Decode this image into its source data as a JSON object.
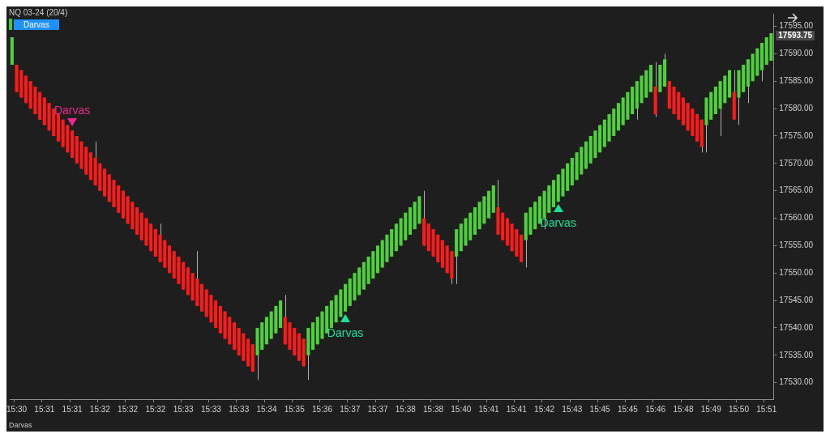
{
  "chart_data": {
    "type": "candlestick",
    "title": "NQ 03-24 (20/4)",
    "categories": [
      null,
      "15:30",
      null,
      null,
      null,
      null,
      null,
      "15:31",
      null,
      null,
      null,
      null,
      null,
      "15:31",
      null,
      null,
      null,
      null,
      null,
      "15:32",
      null,
      null,
      null,
      null,
      null,
      "15:32",
      null,
      null,
      null,
      null,
      null,
      "15:32",
      null,
      null,
      null,
      null,
      null,
      "15:33",
      null,
      null,
      null,
      null,
      null,
      "15:33",
      null,
      null,
      null,
      null,
      null,
      "15:33",
      null,
      null,
      null,
      null,
      null,
      "15:34",
      null,
      null,
      null,
      null,
      null,
      "15:35",
      null,
      null,
      null,
      null,
      null,
      "15:36",
      null,
      null,
      null,
      null,
      null,
      "15:37",
      null,
      null,
      null,
      null,
      null,
      "15:37",
      null,
      null,
      null,
      null,
      null,
      "15:38",
      null,
      null,
      null,
      null,
      null,
      "15:38",
      null,
      null,
      null,
      null,
      null,
      "15:40",
      null,
      null,
      null,
      null,
      null,
      "15:41",
      null,
      null,
      null,
      null,
      null,
      "15:41",
      null,
      null,
      null,
      null,
      null,
      "15:42",
      null,
      null,
      null,
      null,
      null,
      "15:43",
      null,
      null,
      null,
      null,
      null,
      "15:45",
      null,
      null,
      null,
      null,
      null,
      "15:45",
      null,
      null,
      null,
      null,
      null,
      "15:46",
      null,
      null,
      null,
      null,
      null,
      "15:48",
      null,
      null,
      null,
      null,
      null,
      "15:49",
      null,
      null,
      null,
      null,
      null,
      "15:50",
      null,
      null,
      null,
      null,
      null,
      "15:51",
      null
    ],
    "ohlc": [
      [
        17588,
        17593,
        17588,
        17593
      ],
      [
        17588,
        17588,
        17583,
        17583
      ],
      [
        17587,
        17587,
        17582,
        17582
      ],
      [
        17586,
        17586,
        17581,
        17581
      ],
      [
        17585,
        17585,
        17580,
        17580
      ],
      [
        17584,
        17584,
        17579,
        17579
      ],
      [
        17583,
        17583,
        17578,
        17578
      ],
      [
        17582,
        17582,
        17577,
        17577
      ],
      [
        17581,
        17581,
        17576,
        17576
      ],
      [
        17580,
        17580,
        17575,
        17575
      ],
      [
        17579,
        17579,
        17574,
        17574
      ],
      [
        17578,
        17578,
        17573,
        17573
      ],
      [
        17577,
        17577,
        17572,
        17572
      ],
      [
        17576,
        17576,
        17571,
        17571
      ],
      [
        17575,
        17575,
        17570,
        17570
      ],
      [
        17574,
        17574,
        17569,
        17569
      ],
      [
        17573,
        17573,
        17568,
        17568
      ],
      [
        17572,
        17572,
        17567,
        17567
      ],
      [
        17571,
        17574,
        17566,
        17566
      ],
      [
        17570,
        17570,
        17565,
        17565
      ],
      [
        17569,
        17569,
        17564,
        17564
      ],
      [
        17568,
        17568,
        17563,
        17563
      ],
      [
        17567,
        17567,
        17562,
        17562
      ],
      [
        17566,
        17566,
        17561,
        17561
      ],
      [
        17565,
        17565,
        17560,
        17560
      ],
      [
        17564,
        17564,
        17559,
        17559
      ],
      [
        17563,
        17563,
        17558,
        17558
      ],
      [
        17562,
        17562,
        17557,
        17557
      ],
      [
        17561,
        17561,
        17556,
        17556
      ],
      [
        17560,
        17560,
        17555,
        17555
      ],
      [
        17559,
        17559,
        17554,
        17554
      ],
      [
        17558,
        17558,
        17553,
        17553
      ],
      [
        17557,
        17559,
        17552,
        17552
      ],
      [
        17556,
        17556,
        17551,
        17551
      ],
      [
        17555,
        17555,
        17550,
        17550
      ],
      [
        17554,
        17554,
        17549,
        17549
      ],
      [
        17553,
        17553,
        17548,
        17548
      ],
      [
        17552,
        17552,
        17547,
        17547
      ],
      [
        17551,
        17551,
        17546,
        17546
      ],
      [
        17550,
        17550,
        17545,
        17545
      ],
      [
        17549,
        17554,
        17544,
        17544
      ],
      [
        17548,
        17548,
        17543,
        17543
      ],
      [
        17547,
        17547,
        17542,
        17542
      ],
      [
        17546,
        17546,
        17541,
        17541
      ],
      [
        17545,
        17545,
        17540,
        17540
      ],
      [
        17544,
        17544,
        17539,
        17539
      ],
      [
        17543,
        17543,
        17538,
        17538
      ],
      [
        17542,
        17542,
        17537,
        17537
      ],
      [
        17541,
        17541,
        17536,
        17536
      ],
      [
        17540,
        17540,
        17535,
        17535
      ],
      [
        17539,
        17539,
        17534,
        17534
      ],
      [
        17538,
        17538,
        17533,
        17533
      ],
      [
        17537,
        17537,
        17532,
        17532
      ],
      [
        17535,
        17540,
        17530.5,
        17540
      ],
      [
        17536,
        17541,
        17536,
        17541
      ],
      [
        17537,
        17542,
        17537,
        17542
      ],
      [
        17538,
        17543,
        17538,
        17543
      ],
      [
        17539,
        17544,
        17539,
        17544
      ],
      [
        17540,
        17545,
        17540,
        17545
      ],
      [
        17542,
        17546,
        17537,
        17537
      ],
      [
        17541,
        17541,
        17536,
        17536
      ],
      [
        17540,
        17540,
        17535,
        17535
      ],
      [
        17539,
        17539,
        17534,
        17534
      ],
      [
        17538,
        17538,
        17533,
        17533
      ],
      [
        17535,
        17540,
        17530.5,
        17540
      ],
      [
        17536,
        17541,
        17536,
        17541
      ],
      [
        17537,
        17542,
        17537,
        17542
      ],
      [
        17538,
        17543,
        17538,
        17543
      ],
      [
        17539,
        17544,
        17539,
        17544
      ],
      [
        17540,
        17545,
        17540,
        17545
      ],
      [
        17541,
        17546,
        17541,
        17546
      ],
      [
        17542,
        17547,
        17542,
        17547
      ],
      [
        17543,
        17548,
        17543,
        17548
      ],
      [
        17544,
        17549,
        17544,
        17549
      ],
      [
        17545,
        17550,
        17545,
        17550
      ],
      [
        17546,
        17551,
        17546,
        17551
      ],
      [
        17547,
        17552,
        17547,
        17552
      ],
      [
        17548,
        17553,
        17548,
        17553
      ],
      [
        17549,
        17554,
        17549,
        17554
      ],
      [
        17550,
        17555,
        17550,
        17555
      ],
      [
        17551,
        17556,
        17551,
        17556
      ],
      [
        17552,
        17557,
        17552,
        17557
      ],
      [
        17553,
        17558,
        17553,
        17558
      ],
      [
        17554,
        17559,
        17554,
        17559
      ],
      [
        17555,
        17560,
        17555,
        17560
      ],
      [
        17556,
        17561,
        17556,
        17561
      ],
      [
        17557,
        17562,
        17557,
        17562
      ],
      [
        17558,
        17563,
        17558,
        17563
      ],
      [
        17559,
        17564,
        17559,
        17564
      ],
      [
        17560,
        17565,
        17555,
        17555
      ],
      [
        17559,
        17559,
        17554,
        17554
      ],
      [
        17558,
        17558,
        17553,
        17553
      ],
      [
        17557,
        17557,
        17552,
        17552
      ],
      [
        17556,
        17556,
        17551,
        17551
      ],
      [
        17555,
        17555,
        17550,
        17550
      ],
      [
        17554,
        17554,
        17548,
        17549
      ],
      [
        17553,
        17558,
        17548,
        17558
      ],
      [
        17554,
        17559,
        17554,
        17559
      ],
      [
        17555,
        17560,
        17555,
        17560
      ],
      [
        17556,
        17561,
        17556,
        17561
      ],
      [
        17557,
        17562,
        17557,
        17562
      ],
      [
        17558,
        17563,
        17558,
        17563
      ],
      [
        17559,
        17564,
        17559,
        17564
      ],
      [
        17560,
        17565,
        17560,
        17565
      ],
      [
        17561,
        17566,
        17561,
        17566
      ],
      [
        17562,
        17567,
        17557,
        17557
      ],
      [
        17561,
        17561,
        17556,
        17556
      ],
      [
        17560,
        17560,
        17555,
        17555
      ],
      [
        17559,
        17559,
        17554,
        17554
      ],
      [
        17558,
        17558,
        17553,
        17553
      ],
      [
        17557,
        17557,
        17552,
        17552
      ],
      [
        17556,
        17561,
        17551,
        17561
      ],
      [
        17557,
        17562,
        17557,
        17562
      ],
      [
        17558,
        17563,
        17558,
        17563
      ],
      [
        17559,
        17564,
        17559,
        17564
      ],
      [
        17560,
        17565,
        17558,
        17565
      ],
      [
        17561,
        17566,
        17561,
        17566
      ],
      [
        17562,
        17567,
        17562,
        17567
      ],
      [
        17563,
        17568,
        17563,
        17568
      ],
      [
        17564,
        17569,
        17564,
        17569
      ],
      [
        17565,
        17570,
        17565,
        17570
      ],
      [
        17566,
        17571,
        17566,
        17571
      ],
      [
        17567,
        17572,
        17567,
        17572
      ],
      [
        17568,
        17573,
        17568,
        17573
      ],
      [
        17569,
        17574,
        17569,
        17574
      ],
      [
        17570,
        17575,
        17570,
        17575
      ],
      [
        17571,
        17576,
        17571,
        17576
      ],
      [
        17572,
        17577,
        17572,
        17577
      ],
      [
        17573,
        17578,
        17573,
        17578
      ],
      [
        17574,
        17579,
        17574,
        17579
      ],
      [
        17575,
        17580,
        17575,
        17580
      ],
      [
        17576,
        17581,
        17576,
        17581
      ],
      [
        17577,
        17582,
        17577,
        17582
      ],
      [
        17578,
        17583,
        17578,
        17583
      ],
      [
        17579,
        17584,
        17579,
        17584
      ],
      [
        17580,
        17585,
        17578,
        17585
      ],
      [
        17581,
        17586,
        17581,
        17586
      ],
      [
        17582,
        17587,
        17582,
        17587
      ],
      [
        17583,
        17588,
        17583,
        17588
      ],
      [
        17584,
        17588.5,
        17578.5,
        17579
      ],
      [
        17583,
        17588,
        17583,
        17588
      ],
      [
        17584,
        17590,
        17584,
        17589
      ],
      [
        17585,
        17585,
        17580,
        17580
      ],
      [
        17584,
        17584,
        17579,
        17579
      ],
      [
        17583,
        17583,
        17578,
        17578
      ],
      [
        17582,
        17582,
        17577,
        17577
      ],
      [
        17581,
        17581,
        17576,
        17576
      ],
      [
        17580,
        17580,
        17575,
        17575
      ],
      [
        17579,
        17579,
        17574,
        17574
      ],
      [
        17578,
        17578,
        17572,
        17573
      ],
      [
        17577,
        17582,
        17572,
        17582
      ],
      [
        17578,
        17583,
        17578,
        17583
      ],
      [
        17579,
        17584,
        17579,
        17584
      ],
      [
        17580,
        17585,
        17575,
        17585
      ],
      [
        17581,
        17586,
        17581,
        17586
      ],
      [
        17582,
        17587,
        17582,
        17587
      ],
      [
        17583,
        17587,
        17578,
        17578
      ],
      [
        17582,
        17587,
        17577,
        17587
      ],
      [
        17583,
        17588,
        17583,
        17588
      ],
      [
        17584,
        17589,
        17581,
        17589
      ],
      [
        17585,
        17590,
        17585,
        17590
      ],
      [
        17586,
        17591,
        17586,
        17591
      ],
      [
        17587,
        17592,
        17585,
        17592
      ],
      [
        17588,
        17593,
        17588,
        17593
      ],
      [
        17588.75,
        17593.75,
        17588.75,
        17593.75
      ]
    ],
    "colors": [
      "#4ed13a",
      "#ff1a1a",
      "#ff1a1a",
      "#ff1a1a",
      "#ff1a1a",
      "#ff1a1a",
      "#ff1a1a",
      "#ff1a1a",
      "#ff1a1a",
      "#ff1a1a",
      "#ff1a1a",
      "#ff1a1a",
      "#ff1a1a",
      "#ff1a1a",
      "#ff1a1a",
      "#ff1a1a",
      "#ff1a1a",
      "#ff1a1a",
      "#ff1a1a",
      "#ff1a1a",
      "#ff1a1a",
      "#ff1a1a",
      "#ff1a1a",
      "#ff1a1a",
      "#ff1a1a",
      "#ff1a1a",
      "#ff1a1a",
      "#ff1a1a",
      "#ff1a1a",
      "#ff1a1a",
      "#ff1a1a",
      "#ff1a1a",
      "#ff1a1a",
      "#ff1a1a",
      "#ff1a1a",
      "#ff1a1a",
      "#ff1a1a",
      "#ff1a1a",
      "#ff1a1a",
      "#ff1a1a",
      "#ff1a1a",
      "#ff1a1a",
      "#ff1a1a",
      "#ff1a1a",
      "#ff1a1a",
      "#ff1a1a",
      "#ff1a1a",
      "#ff1a1a",
      "#ff1a1a",
      "#ff1a1a",
      "#ff1a1a",
      "#ff1a1a",
      "#ff1a1a",
      "#4ed13a",
      "#4ed13a",
      "#4ed13a",
      "#4ed13a",
      "#4ed13a",
      "#4ed13a",
      "#ff1a1a",
      "#ff1a1a",
      "#ff1a1a",
      "#ff1a1a",
      "#ff1a1a",
      "#4ed13a",
      "#4ed13a",
      "#4ed13a",
      "#4ed13a",
      "#4ed13a",
      "#4ed13a",
      "#4ed13a",
      "#4ed13a",
      "#4ed13a",
      "#4ed13a",
      "#4ed13a",
      "#4ed13a",
      "#4ed13a",
      "#4ed13a",
      "#4ed13a",
      "#4ed13a",
      "#4ed13a",
      "#4ed13a",
      "#4ed13a",
      "#4ed13a",
      "#4ed13a",
      "#4ed13a",
      "#4ed13a",
      "#4ed13a",
      "#4ed13a",
      "#ff1a1a",
      "#ff1a1a",
      "#ff1a1a",
      "#ff1a1a",
      "#ff1a1a",
      "#ff1a1a",
      "#ff1a1a",
      "#4ed13a",
      "#4ed13a",
      "#4ed13a",
      "#4ed13a",
      "#4ed13a",
      "#4ed13a",
      "#4ed13a",
      "#4ed13a",
      "#4ed13a",
      "#ff1a1a",
      "#ff1a1a",
      "#ff1a1a",
      "#ff1a1a",
      "#ff1a1a",
      "#ff1a1a",
      "#4ed13a",
      "#4ed13a",
      "#4ed13a",
      "#4ed13a",
      "#4ed13a",
      "#4ed13a",
      "#4ed13a",
      "#4ed13a",
      "#4ed13a",
      "#4ed13a",
      "#4ed13a",
      "#4ed13a",
      "#4ed13a",
      "#4ed13a",
      "#4ed13a",
      "#4ed13a",
      "#4ed13a",
      "#4ed13a",
      "#4ed13a",
      "#4ed13a",
      "#4ed13a",
      "#4ed13a",
      "#4ed13a",
      "#4ed13a",
      "#4ed13a",
      "#4ed13a",
      "#4ed13a",
      "#4ed13a",
      "#ff1a1a",
      "#4ed13a",
      "#4ed13a",
      "#ff1a1a",
      "#ff1a1a",
      "#ff1a1a",
      "#ff1a1a",
      "#ff1a1a",
      "#ff1a1a",
      "#ff1a1a",
      "#ff1a1a",
      "#4ed13a",
      "#4ed13a",
      "#4ed13a",
      "#4ed13a",
      "#4ed13a",
      "#4ed13a",
      "#ff1a1a",
      "#4ed13a",
      "#4ed13a",
      "#4ed13a",
      "#4ed13a",
      "#4ed13a",
      "#4ed13a",
      "#4ed13a",
      "#4ed13a"
    ],
    "ylim": [
      17527,
      17597.3
    ],
    "yticks": [
      {
        "value": 17530,
        "label": "17530.00"
      },
      {
        "value": 17535,
        "label": "17535.00"
      },
      {
        "value": 17540,
        "label": "17540.00"
      },
      {
        "value": 17545,
        "label": "17545.00"
      },
      {
        "value": 17550,
        "label": "17550.00"
      },
      {
        "value": 17555,
        "label": "17555.00"
      },
      {
        "value": 17560,
        "label": "17560.00"
      },
      {
        "value": 17565,
        "label": "17565.00"
      },
      {
        "value": 17570,
        "label": "17570.00"
      },
      {
        "value": 17575,
        "label": "17575.00"
      },
      {
        "value": 17580,
        "label": "17580.00"
      },
      {
        "value": 17585,
        "label": "17585.00"
      },
      {
        "value": 17590,
        "label": "17590.00"
      },
      {
        "value": 17595,
        "label": "17595.00"
      }
    ],
    "annotations": [
      "Darvas",
      "Darvas",
      "Darvas",
      "17593.75",
      "Darvas",
      "Darvas"
    ]
  }
}
